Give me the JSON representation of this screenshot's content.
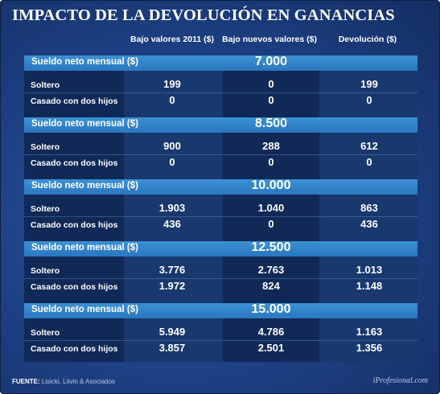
{
  "title": "IMPACTO DE LA DEVOLUCIÓN EN GANANCIAS",
  "columns": [
    "Bajo valores 2011 ($)",
    "Bajo nuevos valores ($)",
    "Devolución ($)"
  ],
  "section_label": "Sueldo neto mensual ($)",
  "row_labels": [
    "Soltero",
    "Casado con dos hijos"
  ],
  "source_label": "FUENTE:",
  "source_text": "Lisicki, Litvin & Asociados",
  "brand": "iProfesional.com",
  "colors": {
    "background": "#1d3f82",
    "section_header": "#3386c9",
    "dark_column": "#102957"
  },
  "chart_data": {
    "type": "table",
    "title": "IMPACTO DE LA DEVOLUCIÓN EN GANANCIAS",
    "columns": [
      "Bajo valores 2011 ($)",
      "Bajo nuevos valores ($)",
      "Devolución ($)"
    ],
    "sections": [
      {
        "label": "Sueldo neto mensual ($)",
        "value": "7.000",
        "rows": [
          {
            "label": "Soltero",
            "values": [
              "199",
              "0",
              "199"
            ]
          },
          {
            "label": "Casado con dos hijos",
            "values": [
              "0",
              "0",
              "0"
            ]
          }
        ]
      },
      {
        "label": "Sueldo neto mensual ($)",
        "value": "8.500",
        "rows": [
          {
            "label": "Soltero",
            "values": [
              "900",
              "288",
              "612"
            ]
          },
          {
            "label": "Casado con dos hijos",
            "values": [
              "0",
              "0",
              "0"
            ]
          }
        ]
      },
      {
        "label": "Sueldo neto mensual ($)",
        "value": "10.000",
        "rows": [
          {
            "label": "Soltero",
            "values": [
              "1.903",
              "1.040",
              "863"
            ]
          },
          {
            "label": "Casado con dos hijos",
            "values": [
              "436",
              "0",
              "436"
            ]
          }
        ]
      },
      {
        "label": "Sueldo neto mensual ($)",
        "value": "12.500",
        "rows": [
          {
            "label": "Soltero",
            "values": [
              "3.776",
              "2.763",
              "1.013"
            ]
          },
          {
            "label": "Casado con dos hijos",
            "values": [
              "1.972",
              "824",
              "1.148"
            ]
          }
        ]
      },
      {
        "label": "Sueldo neto mensual ($)",
        "value": "15.000",
        "rows": [
          {
            "label": "Soltero",
            "values": [
              "5.949",
              "4.786",
              "1.163"
            ]
          },
          {
            "label": "Casado con dos hijos",
            "values": [
              "3.857",
              "2.501",
              "1.356"
            ]
          }
        ]
      }
    ]
  }
}
